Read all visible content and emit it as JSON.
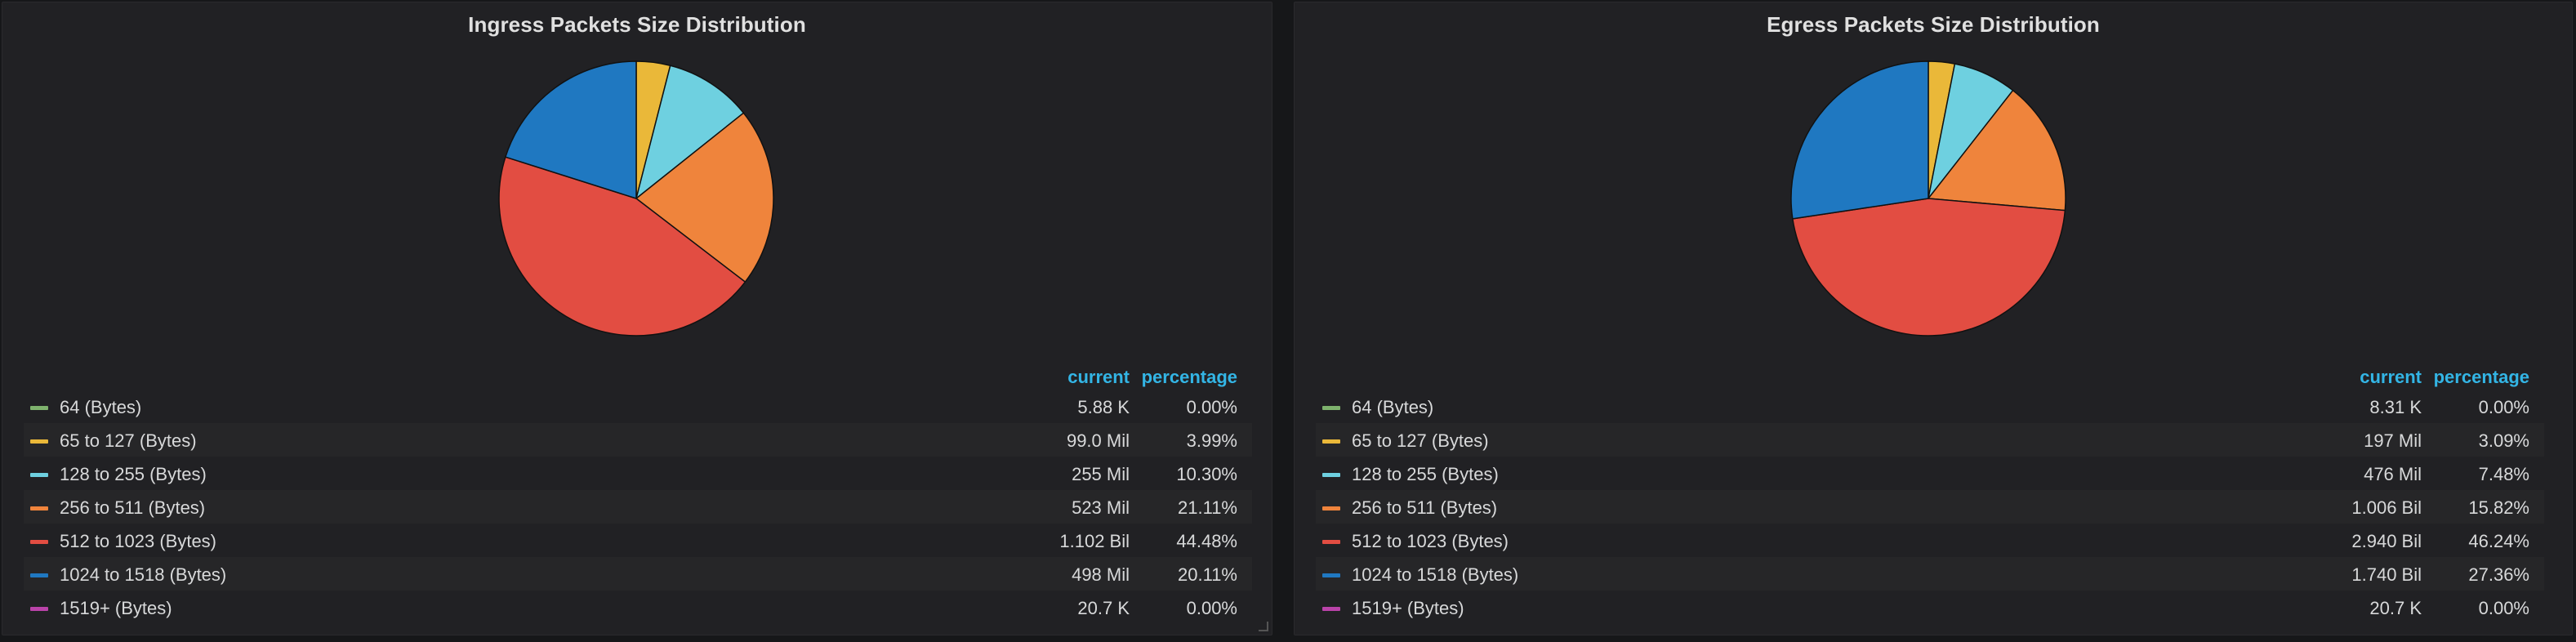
{
  "panels": [
    {
      "title": "Ingress Packets Size Distribution",
      "legend_headers": {
        "current": "current",
        "percentage": "percentage"
      },
      "rows": [
        {
          "label": "64 (Bytes)",
          "current": "5.88 K",
          "percentage": "0.00%",
          "color": "#7eb26d"
        },
        {
          "label": "65 to 127 (Bytes)",
          "current": "99.0 Mil",
          "percentage": "3.99%",
          "color": "#eab839"
        },
        {
          "label": "128 to 255 (Bytes)",
          "current": "255 Mil",
          "percentage": "10.30%",
          "color": "#6ed0e0"
        },
        {
          "label": "256 to 511 (Bytes)",
          "current": "523 Mil",
          "percentage": "21.11%",
          "color": "#ef843c"
        },
        {
          "label": "512 to 1023 (Bytes)",
          "current": "1.102 Bil",
          "percentage": "44.48%",
          "color": "#e24d42"
        },
        {
          "label": "1024 to 1518 (Bytes)",
          "current": "498 Mil",
          "percentage": "20.11%",
          "color": "#1f78c1"
        },
        {
          "label": "1519+ (Bytes)",
          "current": "20.7 K",
          "percentage": "0.00%",
          "color": "#ba43a9"
        }
      ]
    },
    {
      "title": "Egress Packets Size Distribution",
      "legend_headers": {
        "current": "current",
        "percentage": "percentage"
      },
      "rows": [
        {
          "label": "64 (Bytes)",
          "current": "8.31 K",
          "percentage": "0.00%",
          "color": "#7eb26d"
        },
        {
          "label": "65 to 127 (Bytes)",
          "current": "197 Mil",
          "percentage": "3.09%",
          "color": "#eab839"
        },
        {
          "label": "128 to 255 (Bytes)",
          "current": "476 Mil",
          "percentage": "7.48%",
          "color": "#6ed0e0"
        },
        {
          "label": "256 to 511 (Bytes)",
          "current": "1.006 Bil",
          "percentage": "15.82%",
          "color": "#ef843c"
        },
        {
          "label": "512 to 1023 (Bytes)",
          "current": "2.940 Bil",
          "percentage": "46.24%",
          "color": "#e24d42"
        },
        {
          "label": "1024 to 1518 (Bytes)",
          "current": "1.740 Bil",
          "percentage": "27.36%",
          "color": "#1f78c1"
        },
        {
          "label": "1519+ (Bytes)",
          "current": "20.7 K",
          "percentage": "0.00%",
          "color": "#ba43a9"
        }
      ]
    }
  ],
  "chart_data": [
    {
      "type": "pie",
      "title": "Ingress Packets Size Distribution",
      "categories": [
        "64 (Bytes)",
        "65 to 127 (Bytes)",
        "128 to 255 (Bytes)",
        "256 to 511 (Bytes)",
        "512 to 1023 (Bytes)",
        "1024 to 1518 (Bytes)",
        "1519+ (Bytes)"
      ],
      "values": [
        0.0,
        3.99,
        10.3,
        21.11,
        44.48,
        20.11,
        0.0
      ],
      "colors": [
        "#7eb26d",
        "#eab839",
        "#6ed0e0",
        "#ef843c",
        "#e24d42",
        "#1f78c1",
        "#ba43a9"
      ],
      "legend_placement": "bottom"
    },
    {
      "type": "pie",
      "title": "Egress Packets Size Distribution",
      "categories": [
        "64 (Bytes)",
        "65 to 127 (Bytes)",
        "128 to 255 (Bytes)",
        "256 to 511 (Bytes)",
        "512 to 1023 (Bytes)",
        "1024 to 1518 (Bytes)",
        "1519+ (Bytes)"
      ],
      "values": [
        0.0,
        3.09,
        7.48,
        15.82,
        46.24,
        27.36,
        0.0
      ],
      "colors": [
        "#7eb26d",
        "#eab839",
        "#6ed0e0",
        "#ef843c",
        "#e24d42",
        "#1f78c1",
        "#ba43a9"
      ],
      "legend_placement": "bottom"
    }
  ]
}
